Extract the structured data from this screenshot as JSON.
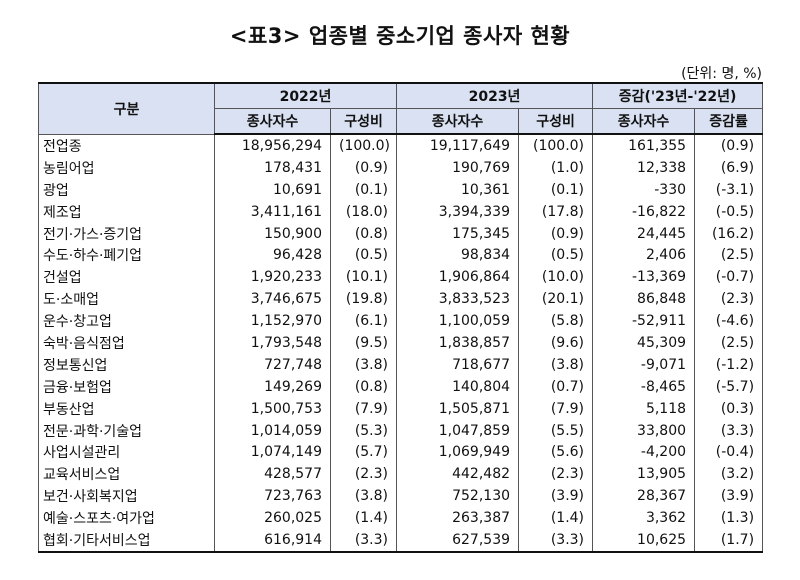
{
  "title": "<표3> 업종별 중소기업 종사자 현황",
  "unit_note": "(단위: 명, %)",
  "header": {
    "category": "구분",
    "y2022": "2022년",
    "y2023": "2023년",
    "change": "증감('23년-'22년)",
    "workers": "종사자수",
    "share": "구성비",
    "change_rate": "증감률"
  },
  "rows": [
    {
      "category": "전업종",
      "w2022": "18,956,294",
      "s2022": "(100.0)",
      "w2023": "19,117,649",
      "s2023": "(100.0)",
      "diff": "161,355",
      "rate": "(0.9)"
    },
    {
      "category": "농림어업",
      "w2022": "178,431",
      "s2022": "(0.9)",
      "w2023": "190,769",
      "s2023": "(1.0)",
      "diff": "12,338",
      "rate": "(6.9)"
    },
    {
      "category": "광업",
      "w2022": "10,691",
      "s2022": "(0.1)",
      "w2023": "10,361",
      "s2023": "(0.1)",
      "diff": "-330",
      "rate": "(-3.1)"
    },
    {
      "category": "제조업",
      "w2022": "3,411,161",
      "s2022": "(18.0)",
      "w2023": "3,394,339",
      "s2023": "(17.8)",
      "diff": "-16,822",
      "rate": "(-0.5)"
    },
    {
      "category": "전기·가스·증기업",
      "w2022": "150,900",
      "s2022": "(0.8)",
      "w2023": "175,345",
      "s2023": "(0.9)",
      "diff": "24,445",
      "rate": "(16.2)"
    },
    {
      "category": "수도·하수·폐기업",
      "w2022": "96,428",
      "s2022": "(0.5)",
      "w2023": "98,834",
      "s2023": "(0.5)",
      "diff": "2,406",
      "rate": "(2.5)"
    },
    {
      "category": "건설업",
      "w2022": "1,920,233",
      "s2022": "(10.1)",
      "w2023": "1,906,864",
      "s2023": "(10.0)",
      "diff": "-13,369",
      "rate": "(-0.7)"
    },
    {
      "category": "도·소매업",
      "w2022": "3,746,675",
      "s2022": "(19.8)",
      "w2023": "3,833,523",
      "s2023": "(20.1)",
      "diff": "86,848",
      "rate": "(2.3)"
    },
    {
      "category": "운수·창고업",
      "w2022": "1,152,970",
      "s2022": "(6.1)",
      "w2023": "1,100,059",
      "s2023": "(5.8)",
      "diff": "-52,911",
      "rate": "(-4.6)"
    },
    {
      "category": "숙박·음식점업",
      "w2022": "1,793,548",
      "s2022": "(9.5)",
      "w2023": "1,838,857",
      "s2023": "(9.6)",
      "diff": "45,309",
      "rate": "(2.5)"
    },
    {
      "category": "정보통신업",
      "w2022": "727,748",
      "s2022": "(3.8)",
      "w2023": "718,677",
      "s2023": "(3.8)",
      "diff": "-9,071",
      "rate": "(-1.2)"
    },
    {
      "category": "금융·보험업",
      "w2022": "149,269",
      "s2022": "(0.8)",
      "w2023": "140,804",
      "s2023": "(0.7)",
      "diff": "-8,465",
      "rate": "(-5.7)"
    },
    {
      "category": "부동산업",
      "w2022": "1,500,753",
      "s2022": "(7.9)",
      "w2023": "1,505,871",
      "s2023": "(7.9)",
      "diff": "5,118",
      "rate": "(0.3)"
    },
    {
      "category": "전문·과학·기술업",
      "w2022": "1,014,059",
      "s2022": "(5.3)",
      "w2023": "1,047,859",
      "s2023": "(5.5)",
      "diff": "33,800",
      "rate": "(3.3)"
    },
    {
      "category": "사업시설관리",
      "w2022": "1,074,149",
      "s2022": "(5.7)",
      "w2023": "1,069,949",
      "s2023": "(5.6)",
      "diff": "-4,200",
      "rate": "(-0.4)"
    },
    {
      "category": "교육서비스업",
      "w2022": "428,577",
      "s2022": "(2.3)",
      "w2023": "442,482",
      "s2023": "(2.3)",
      "diff": "13,905",
      "rate": "(3.2)"
    },
    {
      "category": "보건·사회복지업",
      "w2022": "723,763",
      "s2022": "(3.8)",
      "w2023": "752,130",
      "s2023": "(3.9)",
      "diff": "28,367",
      "rate": "(3.9)"
    },
    {
      "category": "예술·스포츠·여가업",
      "w2022": "260,025",
      "s2022": "(1.4)",
      "w2023": "263,387",
      "s2023": "(1.4)",
      "diff": "3,362",
      "rate": "(1.3)"
    },
    {
      "category": "협회·기타서비스업",
      "w2022": "616,914",
      "s2022": "(3.3)",
      "w2023": "627,539",
      "s2023": "(3.3)",
      "diff": "10,625",
      "rate": "(1.7)"
    }
  ],
  "colors": {
    "header_bg": "#d9e1f2",
    "border": "#555555"
  }
}
